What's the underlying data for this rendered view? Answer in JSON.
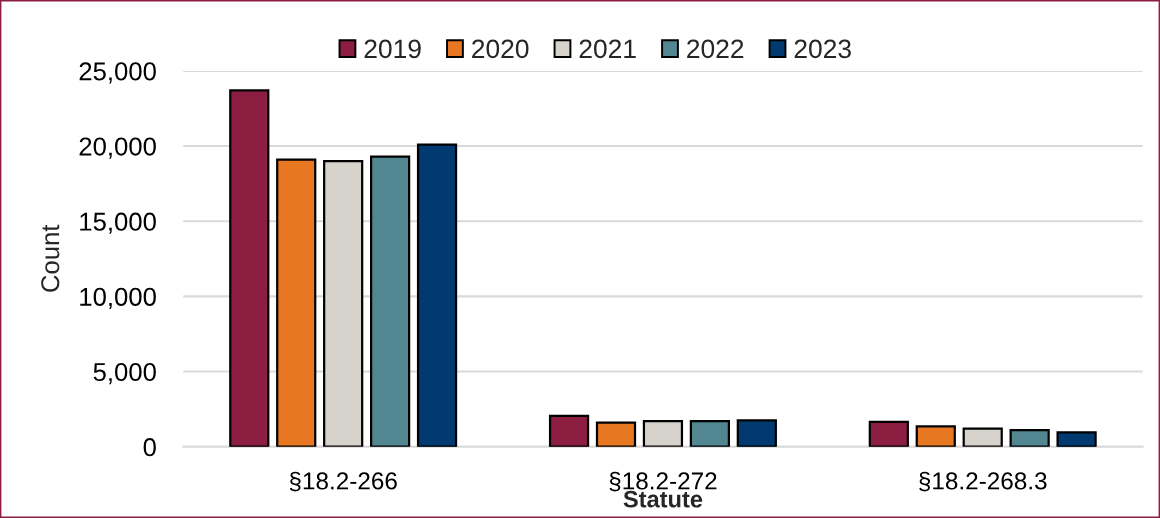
{
  "chart_data": {
    "type": "bar",
    "categories": [
      "§18.2-266",
      "§18.2-272",
      "§18.2-268.3"
    ],
    "xlabel": "Statute",
    "ylabel": "Count",
    "series": [
      {
        "name": "2019",
        "color": "#8b1e41",
        "values": [
          23700,
          2050,
          1650
        ]
      },
      {
        "name": "2020",
        "color": "#e87722",
        "values": [
          19100,
          1600,
          1350
        ]
      },
      {
        "name": "2021",
        "color": "#d6d2cc",
        "values": [
          19000,
          1700,
          1200
        ]
      },
      {
        "name": "2022",
        "color": "#528690",
        "values": [
          19300,
          1700,
          1100
        ]
      },
      {
        "name": "2023",
        "color": "#003a70",
        "values": [
          20100,
          1750,
          950
        ]
      }
    ],
    "ylim": [
      0,
      25000
    ],
    "yticks": [
      0,
      {
        "value": 5000,
        "label": "5,000"
      },
      {
        "value": 10000,
        "label": "10,000"
      },
      {
        "value": 15000,
        "label": "15,000"
      },
      {
        "value": 20000,
        "label": "20,000"
      },
      {
        "value": 25000,
        "label": "25,000"
      }
    ],
    "grid": "y",
    "legend": "top"
  }
}
